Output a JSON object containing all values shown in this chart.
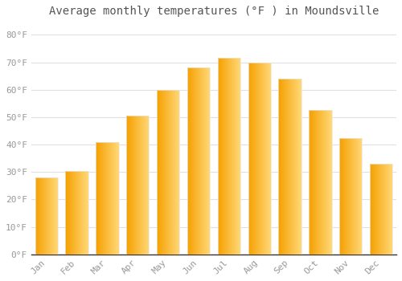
{
  "title": "Average monthly temperatures (°F ) in Moundsville",
  "months": [
    "Jan",
    "Feb",
    "Mar",
    "Apr",
    "May",
    "Jun",
    "Jul",
    "Aug",
    "Sep",
    "Oct",
    "Nov",
    "Dec"
  ],
  "values": [
    28,
    30.5,
    41,
    50.5,
    60,
    68,
    71.5,
    70,
    64,
    52.5,
    42.5,
    33
  ],
  "bar_color_left": "#F5A623",
  "bar_color_right": "#FFD060",
  "bar_edge_color": "#E8E8E8",
  "background_color": "#FFFFFF",
  "plot_bg_color": "#FFFFFF",
  "grid_color": "#E0E0E0",
  "text_color": "#999999",
  "title_color": "#555555",
  "ylim": [
    0,
    85
  ],
  "yticks": [
    0,
    10,
    20,
    30,
    40,
    50,
    60,
    70,
    80
  ],
  "title_fontsize": 10,
  "tick_fontsize": 8,
  "bar_width": 0.75
}
